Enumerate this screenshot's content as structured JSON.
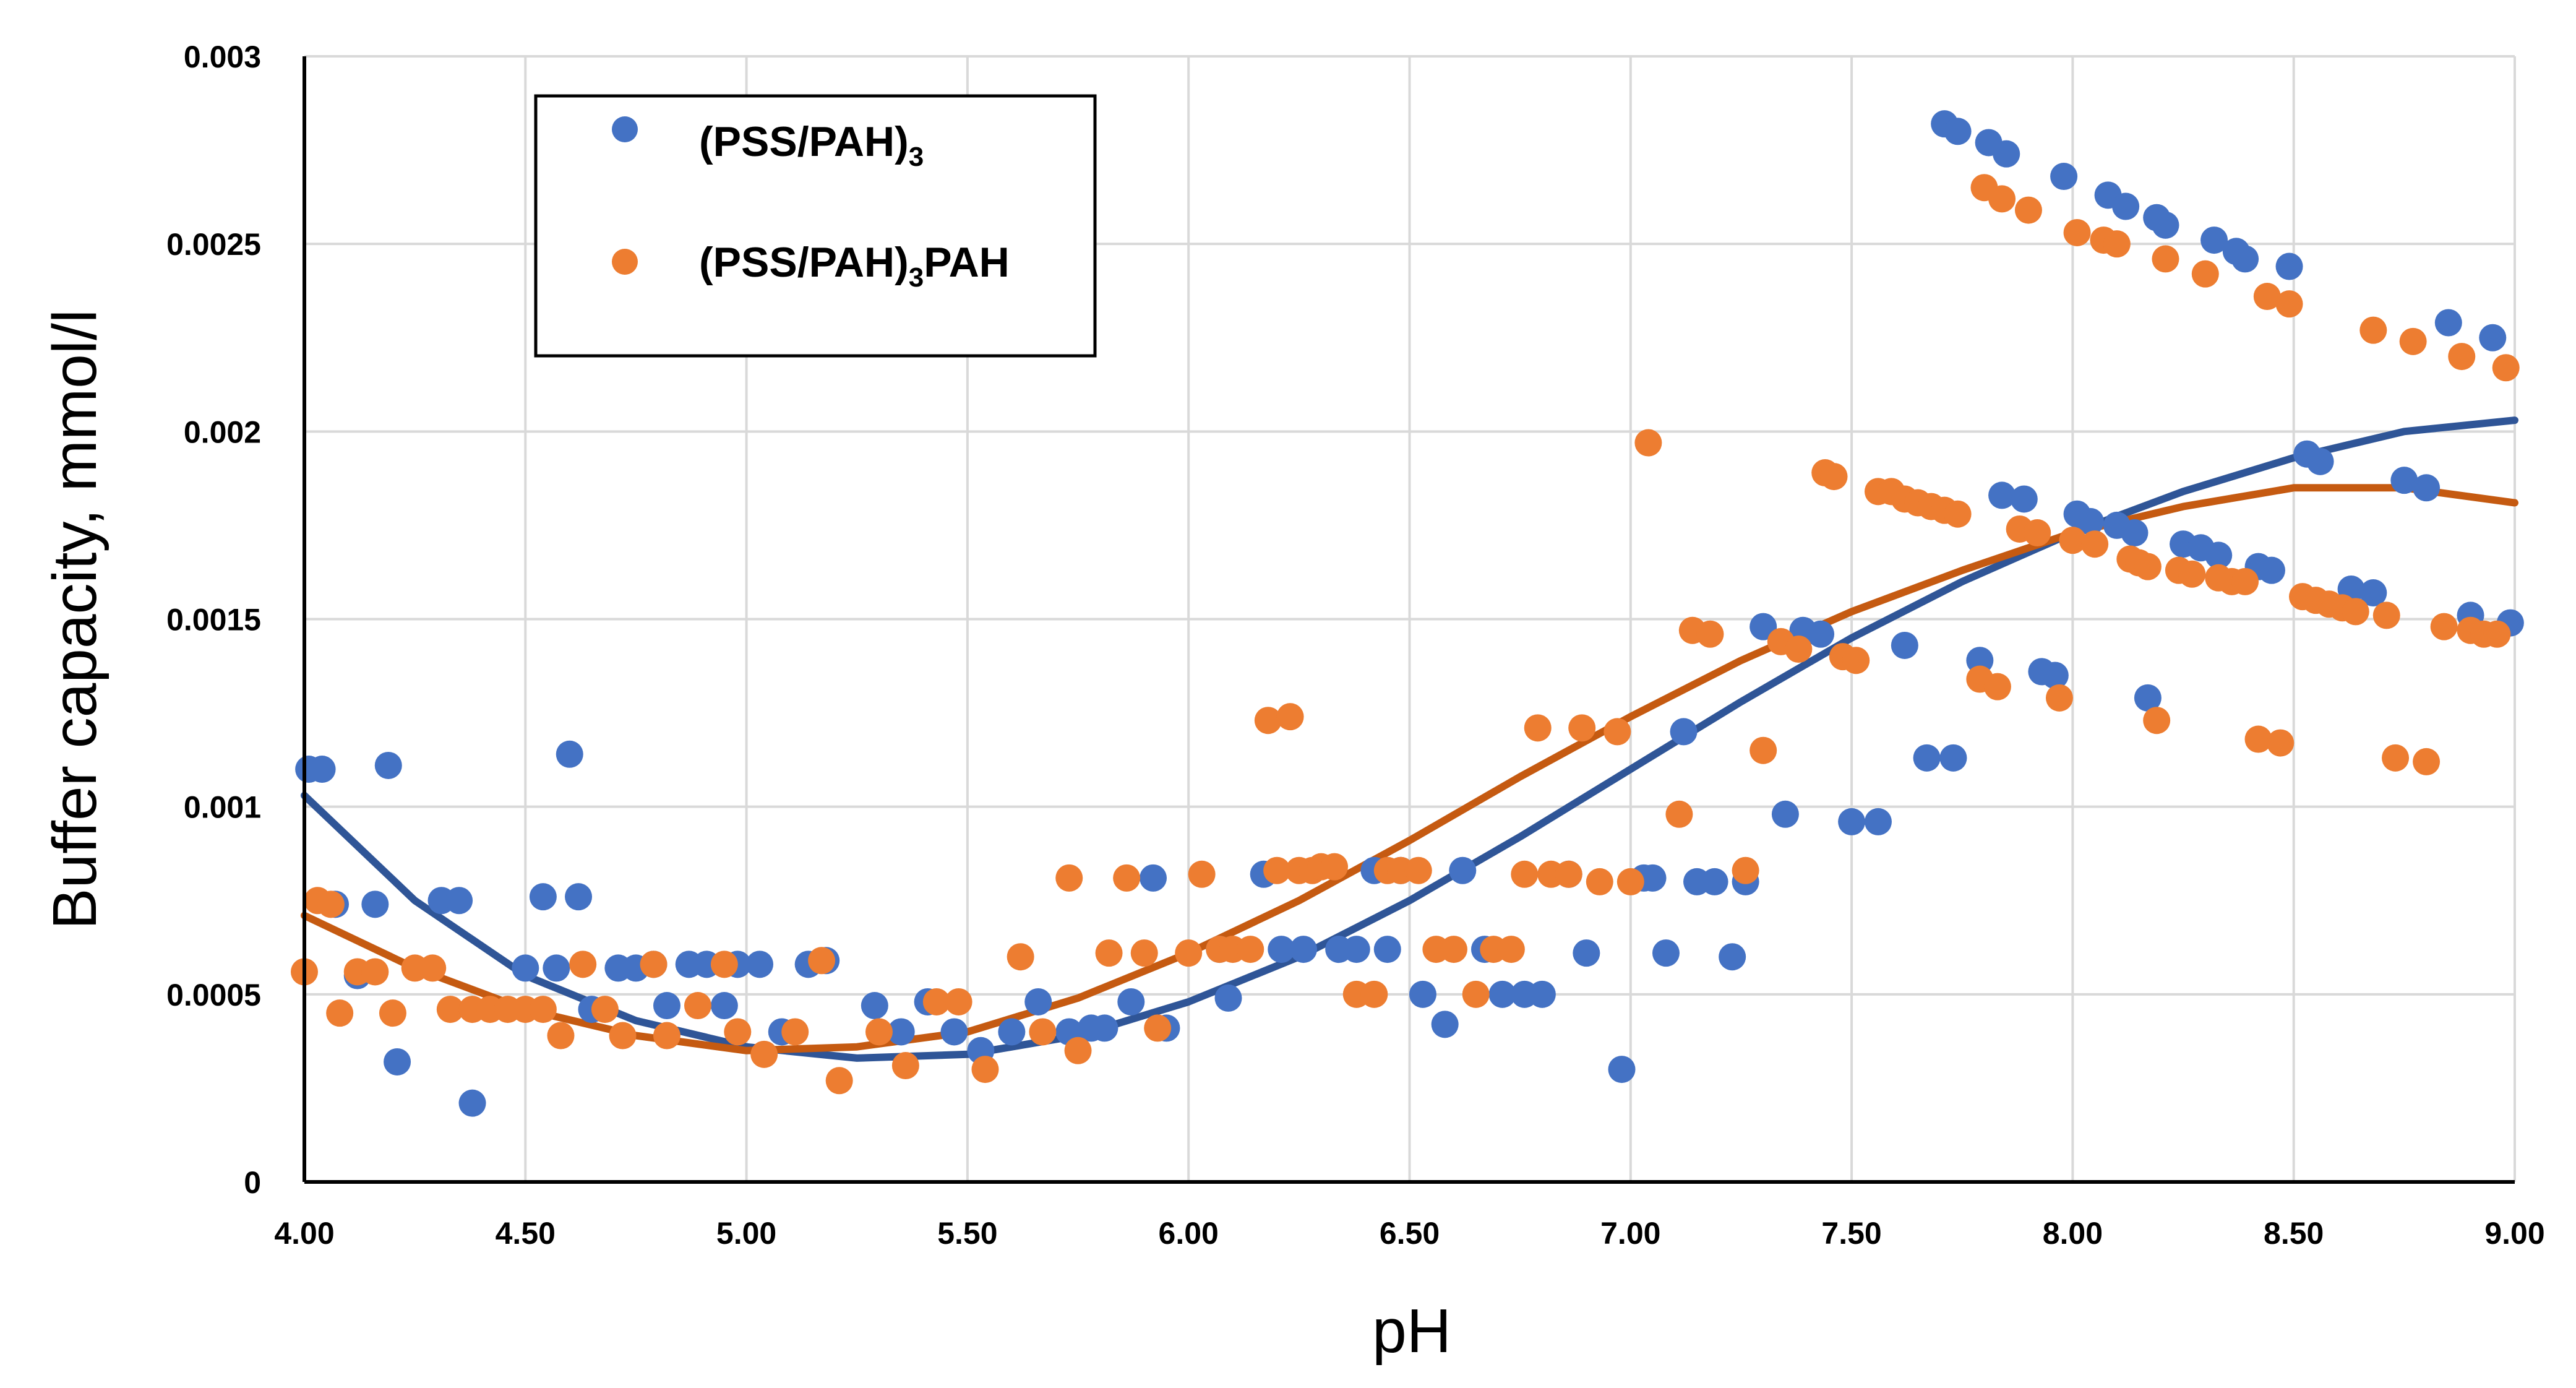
{
  "chart_data": {
    "type": "scatter",
    "xlabel": "pH",
    "ylabel": "Buffer capacity, mmol/l",
    "xlim": [
      4.0,
      9.0
    ],
    "ylim": [
      0,
      0.003
    ],
    "xticks": [
      "4.00",
      "4.50",
      "5.00",
      "5.50",
      "6.00",
      "6.50",
      "7.00",
      "7.50",
      "8.00",
      "8.50",
      "9.00"
    ],
    "yticks": [
      "0",
      "0.0005",
      "0.001",
      "0.0015",
      "0.002",
      "0.0025",
      "0.003"
    ],
    "grid": true,
    "legend_position": "top-left",
    "series": [
      {
        "name": "(PSS/PAH)",
        "name_subscript": "3",
        "name_suffix": "",
        "color": "#4472C4",
        "trend_color": "#2F5597",
        "points": [
          [
            4.01,
            0.0011
          ],
          [
            4.04,
            0.0011
          ],
          [
            4.07,
            0.00074
          ],
          [
            4.12,
            0.00055
          ],
          [
            4.16,
            0.00074
          ],
          [
            4.19,
            0.00111
          ],
          [
            4.21,
            0.00032
          ],
          [
            4.31,
            0.00075
          ],
          [
            4.35,
            0.00075
          ],
          [
            4.38,
            0.00021
          ],
          [
            4.5,
            0.00057
          ],
          [
            4.54,
            0.00076
          ],
          [
            4.57,
            0.00057
          ],
          [
            4.6,
            0.00114
          ],
          [
            4.62,
            0.00076
          ],
          [
            4.65,
            0.00046
          ],
          [
            4.71,
            0.00057
          ],
          [
            4.75,
            0.00057
          ],
          [
            4.79,
            0.00058
          ],
          [
            4.82,
            0.00047
          ],
          [
            4.87,
            0.00058
          ],
          [
            4.91,
            0.00058
          ],
          [
            4.95,
            0.00047
          ],
          [
            4.98,
            0.00058
          ],
          [
            5.03,
            0.00058
          ],
          [
            5.08,
            0.0004
          ],
          [
            5.14,
            0.00058
          ],
          [
            5.18,
            0.00059
          ],
          [
            5.29,
            0.00047
          ],
          [
            5.35,
            0.0004
          ],
          [
            5.41,
            0.00048
          ],
          [
            5.47,
            0.0004
          ],
          [
            5.53,
            0.00035
          ],
          [
            5.6,
            0.0004
          ],
          [
            5.66,
            0.00048
          ],
          [
            5.73,
            0.0004
          ],
          [
            5.78,
            0.00041
          ],
          [
            5.81,
            0.00041
          ],
          [
            5.87,
            0.00048
          ],
          [
            5.92,
            0.00081
          ],
          [
            5.95,
            0.00041
          ],
          [
            6.07,
            0.00062
          ],
          [
            6.09,
            0.00049
          ],
          [
            6.17,
            0.00082
          ],
          [
            6.21,
            0.00062
          ],
          [
            6.26,
            0.00062
          ],
          [
            6.34,
            0.00062
          ],
          [
            6.38,
            0.00062
          ],
          [
            6.42,
            0.00083
          ],
          [
            6.45,
            0.00062
          ],
          [
            6.48,
            0.00083
          ],
          [
            6.53,
            0.0005
          ],
          [
            6.58,
            0.00042
          ],
          [
            6.62,
            0.00083
          ],
          [
            6.67,
            0.00062
          ],
          [
            6.71,
            0.0005
          ],
          [
            6.76,
            0.0005
          ],
          [
            6.8,
            0.0005
          ],
          [
            6.86,
            0.00082
          ],
          [
            6.9,
            0.00061
          ],
          [
            6.98,
            0.0003
          ],
          [
            7.03,
            0.00081
          ],
          [
            7.05,
            0.00081
          ],
          [
            7.08,
            0.00061
          ],
          [
            7.12,
            0.0012
          ],
          [
            7.15,
            0.0008
          ],
          [
            7.19,
            0.0008
          ],
          [
            7.23,
            0.0006
          ],
          [
            7.26,
            0.0008
          ],
          [
            7.3,
            0.00148
          ],
          [
            7.35,
            0.00098
          ],
          [
            7.39,
            0.00147
          ],
          [
            7.43,
            0.00146
          ],
          [
            7.5,
            0.00096
          ],
          [
            7.56,
            0.00096
          ],
          [
            7.62,
            0.00143
          ],
          [
            7.67,
            0.00113
          ],
          [
            7.73,
            0.00113
          ],
          [
            7.71,
            0.00282
          ],
          [
            7.74,
            0.0028
          ],
          [
            7.79,
            0.00139
          ],
          [
            7.81,
            0.00277
          ],
          [
            7.84,
            0.00183
          ],
          [
            7.85,
            0.00274
          ],
          [
            7.89,
            0.00182
          ],
          [
            7.93,
            0.00136
          ],
          [
            7.96,
            0.00135
          ],
          [
            7.98,
            0.00268
          ],
          [
            8.01,
            0.00178
          ],
          [
            8.04,
            0.00176
          ],
          [
            8.08,
            0.00263
          ],
          [
            8.1,
            0.00175
          ],
          [
            8.12,
            0.0026
          ],
          [
            8.14,
            0.00173
          ],
          [
            8.17,
            0.00129
          ],
          [
            8.19,
            0.00257
          ],
          [
            8.21,
            0.00255
          ],
          [
            8.25,
            0.0017
          ],
          [
            8.29,
            0.00169
          ],
          [
            8.32,
            0.00251
          ],
          [
            8.33,
            0.00167
          ],
          [
            8.37,
            0.00248
          ],
          [
            8.39,
            0.00246
          ],
          [
            8.42,
            0.00164
          ],
          [
            8.45,
            0.00163
          ],
          [
            8.49,
            0.00244
          ],
          [
            8.53,
            0.00194
          ],
          [
            8.56,
            0.00192
          ],
          [
            8.63,
            0.00158
          ],
          [
            8.68,
            0.00157
          ],
          [
            8.75,
            0.00187
          ],
          [
            8.8,
            0.00185
          ],
          [
            8.85,
            0.00229
          ],
          [
            8.9,
            0.00151
          ],
          [
            8.95,
            0.00225
          ],
          [
            8.99,
            0.00149
          ]
        ],
        "trend": [
          [
            4.0,
            0.00103
          ],
          [
            4.25,
            0.00075
          ],
          [
            4.5,
            0.00055
          ],
          [
            4.75,
            0.00043
          ],
          [
            5.0,
            0.00036
          ],
          [
            5.25,
            0.00033
          ],
          [
            5.5,
            0.00034
          ],
          [
            5.75,
            0.00039
          ],
          [
            6.0,
            0.00048
          ],
          [
            6.25,
            0.0006
          ],
          [
            6.5,
            0.00075
          ],
          [
            6.75,
            0.00092
          ],
          [
            7.0,
            0.0011
          ],
          [
            7.25,
            0.00128
          ],
          [
            7.5,
            0.00145
          ],
          [
            7.75,
            0.0016
          ],
          [
            8.0,
            0.00173
          ],
          [
            8.25,
            0.00184
          ],
          [
            8.5,
            0.00193
          ],
          [
            8.75,
            0.002
          ],
          [
            9.0,
            0.00203
          ]
        ]
      },
      {
        "name": "(PSS/PAH)",
        "name_subscript": "3",
        "name_suffix": "PAH",
        "color": "#ED7D31",
        "trend_color": "#C55A11",
        "points": [
          [
            4.0,
            0.00056
          ],
          [
            4.03,
            0.00075
          ],
          [
            4.06,
            0.00074
          ],
          [
            4.08,
            0.00045
          ],
          [
            4.12,
            0.00056
          ],
          [
            4.16,
            0.00056
          ],
          [
            4.2,
            0.00045
          ],
          [
            4.25,
            0.00057
          ],
          [
            4.29,
            0.00057
          ],
          [
            4.33,
            0.00046
          ],
          [
            4.38,
            0.00046
          ],
          [
            4.42,
            0.00046
          ],
          [
            4.46,
            0.00046
          ],
          [
            4.5,
            0.00046
          ],
          [
            4.54,
            0.00046
          ],
          [
            4.58,
            0.00039
          ],
          [
            4.63,
            0.00058
          ],
          [
            4.68,
            0.00046
          ],
          [
            4.72,
            0.00039
          ],
          [
            4.79,
            0.00058
          ],
          [
            4.82,
            0.00039
          ],
          [
            4.89,
            0.00047
          ],
          [
            4.95,
            0.00058
          ],
          [
            4.98,
            0.0004
          ],
          [
            5.04,
            0.00034
          ],
          [
            5.11,
            0.0004
          ],
          [
            5.17,
            0.00059
          ],
          [
            5.21,
            0.00027
          ],
          [
            5.3,
            0.0004
          ],
          [
            5.36,
            0.00031
          ],
          [
            5.43,
            0.00048
          ],
          [
            5.48,
            0.00048
          ],
          [
            5.54,
            0.0003
          ],
          [
            5.62,
            0.0006
          ],
          [
            5.67,
            0.0004
          ],
          [
            5.73,
            0.00081
          ],
          [
            5.75,
            0.00035
          ],
          [
            5.82,
            0.00061
          ],
          [
            5.86,
            0.00081
          ],
          [
            5.9,
            0.00061
          ],
          [
            5.93,
            0.00041
          ],
          [
            6.0,
            0.00061
          ],
          [
            6.03,
            0.00082
          ],
          [
            6.07,
            0.00062
          ],
          [
            6.1,
            0.00062
          ],
          [
            6.14,
            0.00062
          ],
          [
            6.18,
            0.00123
          ],
          [
            6.2,
            0.00083
          ],
          [
            6.23,
            0.00124
          ],
          [
            6.25,
            0.00083
          ],
          [
            6.28,
            0.00083
          ],
          [
            6.3,
            0.00084
          ],
          [
            6.33,
            0.00084
          ],
          [
            6.38,
            0.0005
          ],
          [
            6.42,
            0.0005
          ],
          [
            6.45,
            0.00083
          ],
          [
            6.48,
            0.00083
          ],
          [
            6.52,
            0.00083
          ],
          [
            6.56,
            0.00062
          ],
          [
            6.6,
            0.00062
          ],
          [
            6.65,
            0.0005
          ],
          [
            6.69,
            0.00062
          ],
          [
            6.73,
            0.00062
          ],
          [
            6.76,
            0.00082
          ],
          [
            6.79,
            0.00121
          ],
          [
            6.82,
            0.00082
          ],
          [
            6.86,
            0.00082
          ],
          [
            6.89,
            0.00121
          ],
          [
            6.93,
            0.0008
          ],
          [
            6.97,
            0.0012
          ],
          [
            7.0,
            0.0008
          ],
          [
            7.04,
            0.00197
          ],
          [
            7.11,
            0.00098
          ],
          [
            7.14,
            0.00147
          ],
          [
            7.18,
            0.00146
          ],
          [
            7.26,
            0.00083
          ],
          [
            7.3,
            0.00115
          ],
          [
            7.34,
            0.00144
          ],
          [
            7.38,
            0.00142
          ],
          [
            7.44,
            0.00189
          ],
          [
            7.46,
            0.00188
          ],
          [
            7.48,
            0.0014
          ],
          [
            7.51,
            0.00139
          ],
          [
            7.56,
            0.00184
          ],
          [
            7.59,
            0.00184
          ],
          [
            7.62,
            0.00182
          ],
          [
            7.65,
            0.00181
          ],
          [
            7.68,
            0.0018
          ],
          [
            7.71,
            0.00179
          ],
          [
            7.74,
            0.00178
          ],
          [
            7.79,
            0.00134
          ],
          [
            7.8,
            0.00265
          ],
          [
            7.83,
            0.00132
          ],
          [
            7.84,
            0.00262
          ],
          [
            7.88,
            0.00174
          ],
          [
            7.9,
            0.00259
          ],
          [
            7.92,
            0.00173
          ],
          [
            7.97,
            0.00129
          ],
          [
            8.0,
            0.00171
          ],
          [
            8.01,
            0.00253
          ],
          [
            8.05,
            0.0017
          ],
          [
            8.07,
            0.00251
          ],
          [
            8.1,
            0.0025
          ],
          [
            8.13,
            0.00166
          ],
          [
            8.15,
            0.00165
          ],
          [
            8.17,
            0.00164
          ],
          [
            8.19,
            0.00123
          ],
          [
            8.21,
            0.00246
          ],
          [
            8.24,
            0.00163
          ],
          [
            8.27,
            0.00162
          ],
          [
            8.3,
            0.00242
          ],
          [
            8.33,
            0.00161
          ],
          [
            8.36,
            0.0016
          ],
          [
            8.39,
            0.0016
          ],
          [
            8.42,
            0.00118
          ],
          [
            8.44,
            0.00236
          ],
          [
            8.47,
            0.00117
          ],
          [
            8.49,
            0.00234
          ],
          [
            8.52,
            0.00156
          ],
          [
            8.55,
            0.00155
          ],
          [
            8.58,
            0.00154
          ],
          [
            8.61,
            0.00153
          ],
          [
            8.64,
            0.00152
          ],
          [
            8.68,
            0.00227
          ],
          [
            8.71,
            0.00151
          ],
          [
            8.73,
            0.00113
          ],
          [
            8.77,
            0.00224
          ],
          [
            8.8,
            0.00112
          ],
          [
            8.84,
            0.00148
          ],
          [
            8.88,
            0.0022
          ],
          [
            8.9,
            0.00147
          ],
          [
            8.93,
            0.00146
          ],
          [
            8.96,
            0.00146
          ],
          [
            8.98,
            0.00217
          ]
        ],
        "trend": [
          [
            4.0,
            0.00071
          ],
          [
            4.25,
            0.00057
          ],
          [
            4.5,
            0.00046
          ],
          [
            4.75,
            0.00039
          ],
          [
            5.0,
            0.00035
          ],
          [
            5.25,
            0.00036
          ],
          [
            5.5,
            0.0004
          ],
          [
            5.75,
            0.00049
          ],
          [
            6.0,
            0.00061
          ],
          [
            6.25,
            0.00075
          ],
          [
            6.5,
            0.00091
          ],
          [
            6.75,
            0.00108
          ],
          [
            7.0,
            0.00124
          ],
          [
            7.25,
            0.00139
          ],
          [
            7.5,
            0.00152
          ],
          [
            7.75,
            0.00163
          ],
          [
            8.0,
            0.00173
          ],
          [
            8.25,
            0.0018
          ],
          [
            8.5,
            0.00185
          ],
          [
            8.75,
            0.00185
          ],
          [
            9.0,
            0.00181
          ]
        ]
      }
    ]
  }
}
